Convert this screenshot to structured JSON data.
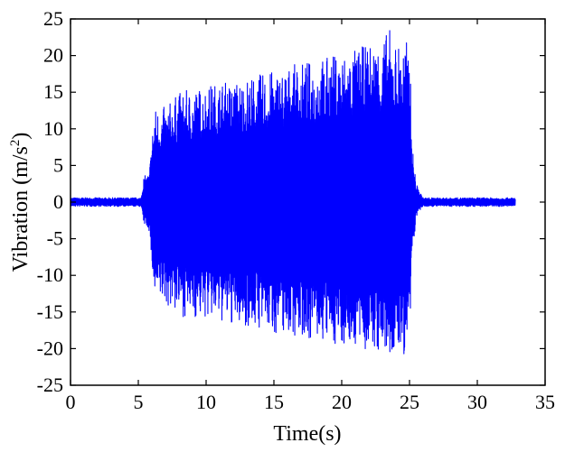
{
  "chart_data": {
    "type": "line",
    "xlabel": "Time(s)",
    "ylabel_main": "Vibration (m/s",
    "ylabel_sup": "2",
    "ylabel_tail": ")",
    "xlim": [
      0,
      35
    ],
    "ylim": [
      -25,
      25
    ],
    "xticks": [
      0,
      5,
      10,
      15,
      20,
      25,
      30,
      35
    ],
    "yticks": [
      -25,
      -20,
      -15,
      -10,
      -5,
      0,
      5,
      10,
      15,
      20,
      25
    ],
    "grid": false,
    "series": [
      {
        "color": "#0000ff",
        "envelope_time": [
          0,
          5.2,
          5.4,
          5.8,
          6.0,
          6.2,
          7,
          8,
          9,
          10,
          11,
          12,
          13,
          14,
          15,
          16,
          17,
          18,
          19,
          20,
          21,
          22,
          23,
          23.5,
          24,
          24.5,
          25,
          25.2,
          25.5,
          26,
          32.8
        ],
        "envelope_max": [
          0.6,
          0.6,
          3.5,
          4,
          9,
          13,
          13,
          15,
          15.5,
          16,
          16.5,
          16.5,
          17,
          17.5,
          18,
          18.5,
          19,
          19.5,
          20,
          20.5,
          21,
          21.5,
          22.5,
          23.8,
          22,
          22,
          22,
          8,
          2.5,
          0.6,
          0.6
        ],
        "envelope_min": [
          -0.6,
          -0.6,
          -3,
          -4,
          -9,
          -14,
          -14,
          -15.5,
          -16,
          -16,
          -16.5,
          -17,
          -17,
          -17.5,
          -18,
          -18,
          -18.5,
          -19,
          -19.5,
          -19.5,
          -20,
          -20.5,
          -21,
          -22,
          -21,
          -21,
          -21.8,
          -8,
          -2,
          -0.6,
          -0.6
        ]
      }
    ]
  }
}
